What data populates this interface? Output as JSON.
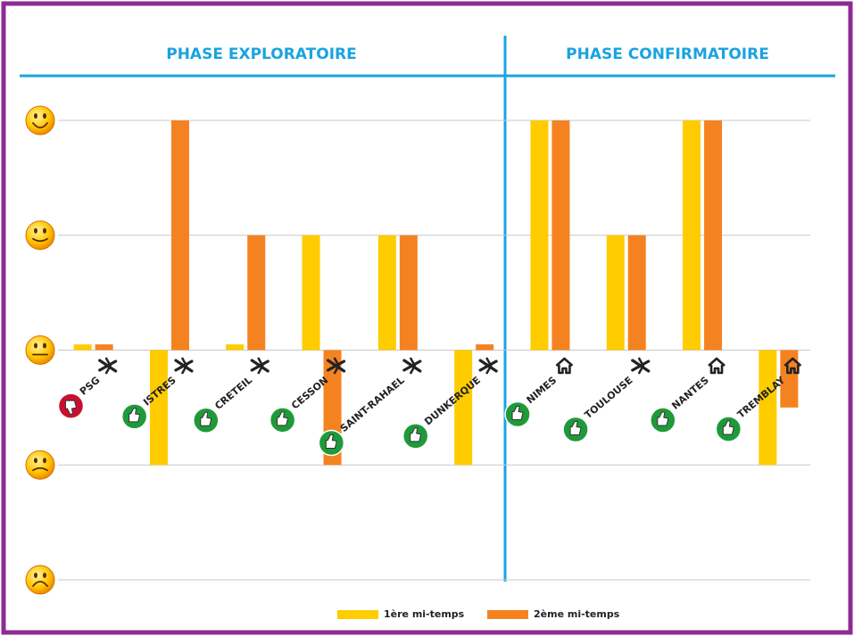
{
  "chart_data": {
    "type": "bar",
    "phases": [
      "PHASE EXPLORATOIRE",
      "PHASE CONFIRMATOIRE"
    ],
    "categories": [
      "PSG",
      "ISTRES",
      "CRETEIL",
      "CESSON",
      "SAINT-RAHAEL",
      "DUNKERQUE",
      "NIMES",
      "TOULOUSE",
      "NANTES",
      "TREMBLAY"
    ],
    "series": [
      {
        "name": "1ère mi-temps",
        "color": "#ffcc00",
        "values": [
          0.05,
          -1,
          0.05,
          1,
          1,
          -1,
          2,
          1,
          2,
          -1
        ]
      },
      {
        "name": "2ème mi-temps",
        "color": "#f58220",
        "values": [
          0.05,
          2,
          1,
          -1,
          1,
          0.05,
          2,
          1,
          2,
          -0.5
        ]
      }
    ],
    "ylim": [
      -2,
      2
    ],
    "yticks": [
      -2,
      -1,
      0,
      1,
      2
    ],
    "grid": true
  }
}
